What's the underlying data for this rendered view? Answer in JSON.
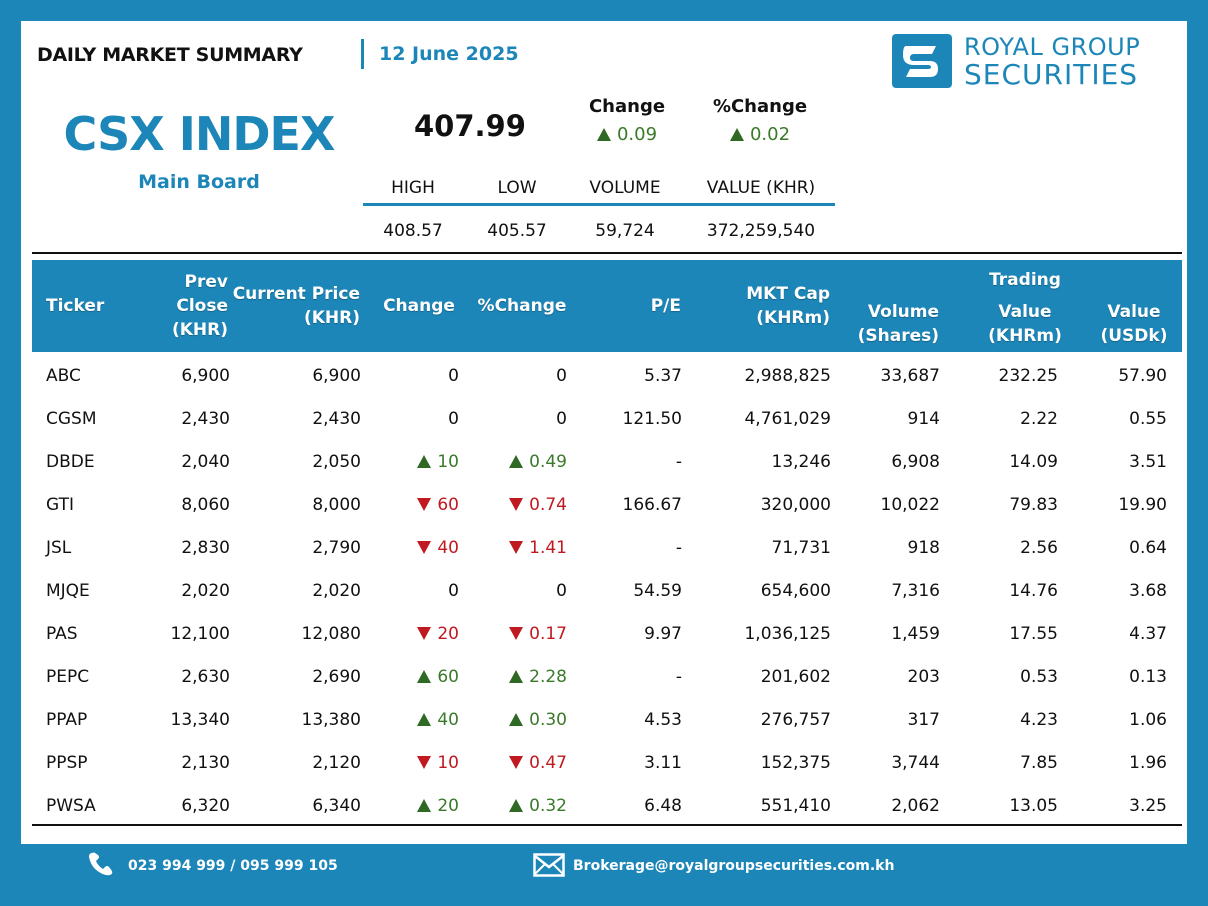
{
  "header": {
    "title": "DAILY MARKET SUMMARY",
    "date": "12 June 2025",
    "brand_line1": "ROYAL GROUP",
    "brand_line2": "SECURITIES"
  },
  "index": {
    "name": "CSX INDEX",
    "board": "Main Board",
    "value": "407.99",
    "change_label": "Change",
    "change_value": "0.09",
    "pct_change_label": "%Change",
    "pct_change_value": "0.02",
    "stats_labels": [
      "HIGH",
      "LOW",
      "VOLUME",
      "VALUE (KHR)"
    ],
    "stats_values": [
      "408.57",
      "405.57",
      "59,724",
      "372,259,540"
    ]
  },
  "table": {
    "headers": {
      "ticker": "Ticker",
      "prev_close_1": "Prev",
      "prev_close_2": "Close",
      "prev_close_3": "(KHR)",
      "current_price_1": "Current Price",
      "current_price_2": "(KHR)",
      "change": "Change",
      "pct_change": "%Change",
      "pe": "P/E",
      "mkt_cap_1": "MKT Cap",
      "mkt_cap_2": "(KHRm)",
      "volume_1": "Volume",
      "volume_2": "(Shares)",
      "trading": "Trading",
      "value_khr_1": "Value",
      "value_khr_2": "(KHRm)",
      "value_usd_1": "Value",
      "value_usd_2": "(USDk)"
    },
    "rows": [
      {
        "ticker": "ABC",
        "prev": "6,900",
        "cur": "6,900",
        "dir": "none",
        "chg": "0",
        "pct": "0",
        "pe": "5.37",
        "cap": "2,988,825",
        "vol": "33,687",
        "val_khr": "232.25",
        "val_usd": "57.90"
      },
      {
        "ticker": "CGSM",
        "prev": "2,430",
        "cur": "2,430",
        "dir": "none",
        "chg": "0",
        "pct": "0",
        "pe": "121.50",
        "cap": "4,761,029",
        "vol": "914",
        "val_khr": "2.22",
        "val_usd": "0.55"
      },
      {
        "ticker": "DBDE",
        "prev": "2,040",
        "cur": "2,050",
        "dir": "up",
        "chg": "10",
        "pct": "0.49",
        "pe": "-",
        "cap": "13,246",
        "vol": "6,908",
        "val_khr": "14.09",
        "val_usd": "3.51"
      },
      {
        "ticker": "GTI",
        "prev": "8,060",
        "cur": "8,000",
        "dir": "down",
        "chg": "60",
        "pct": "0.74",
        "pe": "166.67",
        "cap": "320,000",
        "vol": "10,022",
        "val_khr": "79.83",
        "val_usd": "19.90"
      },
      {
        "ticker": "JSL",
        "prev": "2,830",
        "cur": "2,790",
        "dir": "down",
        "chg": "40",
        "pct": "1.41",
        "pe": "-",
        "cap": "71,731",
        "vol": "918",
        "val_khr": "2.56",
        "val_usd": "0.64"
      },
      {
        "ticker": "MJQE",
        "prev": "2,020",
        "cur": "2,020",
        "dir": "none",
        "chg": "0",
        "pct": "0",
        "pe": "54.59",
        "cap": "654,600",
        "vol": "7,316",
        "val_khr": "14.76",
        "val_usd": "3.68"
      },
      {
        "ticker": "PAS",
        "prev": "12,100",
        "cur": "12,080",
        "dir": "down",
        "chg": "20",
        "pct": "0.17",
        "pe": "9.97",
        "cap": "1,036,125",
        "vol": "1,459",
        "val_khr": "17.55",
        "val_usd": "4.37"
      },
      {
        "ticker": "PEPC",
        "prev": "2,630",
        "cur": "2,690",
        "dir": "up",
        "chg": "60",
        "pct": "2.28",
        "pe": "-",
        "cap": "201,602",
        "vol": "203",
        "val_khr": "0.53",
        "val_usd": "0.13"
      },
      {
        "ticker": "PPAP",
        "prev": "13,340",
        "cur": "13,380",
        "dir": "up",
        "chg": "40",
        "pct": "0.30",
        "pe": "4.53",
        "cap": "276,757",
        "vol": "317",
        "val_khr": "4.23",
        "val_usd": "1.06"
      },
      {
        "ticker": "PPSP",
        "prev": "2,130",
        "cur": "2,120",
        "dir": "down",
        "chg": "10",
        "pct": "0.47",
        "pe": "3.11",
        "cap": "152,375",
        "vol": "3,744",
        "val_khr": "7.85",
        "val_usd": "1.96"
      },
      {
        "ticker": "PWSA",
        "prev": "6,320",
        "cur": "6,340",
        "dir": "up",
        "chg": "20",
        "pct": "0.32",
        "pe": "6.48",
        "cap": "551,410",
        "vol": "2,062",
        "val_khr": "13.05",
        "val_usd": "3.25"
      }
    ]
  },
  "footer": {
    "phone": "023 994 999 / 095 999 105",
    "email": "Brokerage@royalgroupsecurities.com.kh"
  },
  "colors": {
    "brand_blue": "#1d86b8",
    "up_green": "#3a7a2a",
    "down_red": "#c0191f"
  },
  "icons": [
    "phone-icon",
    "mail-icon",
    "logo-icon",
    "triangle-up-icon",
    "triangle-down-icon"
  ]
}
